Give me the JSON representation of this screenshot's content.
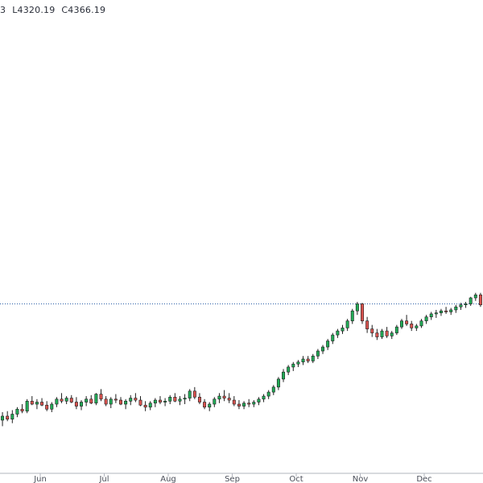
{
  "ohlc_readout": {
    "open_fragment": "3",
    "low": "L4320.19",
    "close": "C4366.19"
  },
  "colors": {
    "up": "#26a69a",
    "up_fill": "#22ab57",
    "down": "#ef5350",
    "down_fill": "#d9534f",
    "wick": "#1e1e1e",
    "price_line": "#2a5fa8",
    "axis": "#b2b5be"
  },
  "chart_data": {
    "type": "candlestick",
    "price_line": 3005,
    "ylim": [
      2200,
      4400
    ],
    "x_labels": [
      "Jun",
      "Jul",
      "Aug",
      "Sep",
      "Oct",
      "Nov",
      "Dec"
    ],
    "grid": false,
    "candles": [
      [
        2425,
        2465,
        2395,
        2445
      ],
      [
        2445,
        2470,
        2420,
        2430
      ],
      [
        2430,
        2475,
        2410,
        2455
      ],
      [
        2455,
        2490,
        2440,
        2480
      ],
      [
        2480,
        2505,
        2460,
        2470
      ],
      [
        2470,
        2530,
        2460,
        2520
      ],
      [
        2520,
        2545,
        2500,
        2505
      ],
      [
        2505,
        2530,
        2480,
        2515
      ],
      [
        2515,
        2535,
        2495,
        2500
      ],
      [
        2500,
        2520,
        2470,
        2480
      ],
      [
        2480,
        2515,
        2465,
        2505
      ],
      [
        2505,
        2540,
        2490,
        2530
      ],
      [
        2530,
        2560,
        2510,
        2520
      ],
      [
        2520,
        2545,
        2505,
        2535
      ],
      [
        2535,
        2550,
        2510,
        2515
      ],
      [
        2515,
        2540,
        2480,
        2495
      ],
      [
        2495,
        2525,
        2475,
        2515
      ],
      [
        2515,
        2545,
        2495,
        2530
      ],
      [
        2530,
        2550,
        2505,
        2510
      ],
      [
        2510,
        2560,
        2500,
        2555
      ],
      [
        2555,
        2580,
        2520,
        2530
      ],
      [
        2530,
        2545,
        2495,
        2505
      ],
      [
        2505,
        2540,
        2485,
        2530
      ],
      [
        2530,
        2555,
        2510,
        2525
      ],
      [
        2525,
        2540,
        2500,
        2505
      ],
      [
        2505,
        2530,
        2480,
        2520
      ],
      [
        2520,
        2550,
        2500,
        2535
      ],
      [
        2535,
        2560,
        2515,
        2525
      ],
      [
        2525,
        2545,
        2495,
        2500
      ],
      [
        2500,
        2520,
        2470,
        2490
      ],
      [
        2490,
        2520,
        2475,
        2510
      ],
      [
        2510,
        2535,
        2490,
        2525
      ],
      [
        2525,
        2545,
        2505,
        2515
      ],
      [
        2515,
        2535,
        2495,
        2520
      ],
      [
        2520,
        2550,
        2505,
        2540
      ],
      [
        2540,
        2560,
        2515,
        2520
      ],
      [
        2520,
        2545,
        2500,
        2530
      ],
      [
        2530,
        2555,
        2505,
        2535
      ],
      [
        2535,
        2580,
        2520,
        2570
      ],
      [
        2570,
        2590,
        2530,
        2540
      ],
      [
        2540,
        2560,
        2505,
        2515
      ],
      [
        2515,
        2530,
        2480,
        2490
      ],
      [
        2490,
        2515,
        2470,
        2505
      ],
      [
        2505,
        2540,
        2490,
        2530
      ],
      [
        2530,
        2560,
        2510,
        2545
      ],
      [
        2545,
        2575,
        2520,
        2535
      ],
      [
        2535,
        2560,
        2510,
        2525
      ],
      [
        2525,
        2545,
        2495,
        2505
      ],
      [
        2505,
        2525,
        2480,
        2495
      ],
      [
        2495,
        2520,
        2480,
        2510
      ],
      [
        2510,
        2530,
        2490,
        2505
      ],
      [
        2505,
        2525,
        2490,
        2515
      ],
      [
        2515,
        2540,
        2500,
        2530
      ],
      [
        2530,
        2555,
        2515,
        2545
      ],
      [
        2545,
        2575,
        2530,
        2565
      ],
      [
        2565,
        2600,
        2550,
        2590
      ],
      [
        2590,
        2640,
        2575,
        2630
      ],
      [
        2630,
        2680,
        2615,
        2665
      ],
      [
        2665,
        2700,
        2650,
        2690
      ],
      [
        2690,
        2715,
        2670,
        2705
      ],
      [
        2705,
        2725,
        2690,
        2715
      ],
      [
        2715,
        2745,
        2700,
        2730
      ],
      [
        2730,
        2745,
        2710,
        2720
      ],
      [
        2720,
        2755,
        2710,
        2745
      ],
      [
        2745,
        2780,
        2730,
        2770
      ],
      [
        2770,
        2800,
        2755,
        2790
      ],
      [
        2790,
        2830,
        2775,
        2820
      ],
      [
        2820,
        2860,
        2805,
        2850
      ],
      [
        2850,
        2880,
        2835,
        2870
      ],
      [
        2870,
        2900,
        2855,
        2885
      ],
      [
        2885,
        2930,
        2870,
        2920
      ],
      [
        2920,
        2980,
        2905,
        2970
      ],
      [
        2970,
        3015,
        2950,
        3005
      ],
      [
        3005,
        3010,
        2905,
        2920
      ],
      [
        2920,
        2940,
        2860,
        2880
      ],
      [
        2880,
        2900,
        2840,
        2860
      ],
      [
        2860,
        2880,
        2825,
        2840
      ],
      [
        2840,
        2880,
        2830,
        2870
      ],
      [
        2870,
        2890,
        2835,
        2845
      ],
      [
        2845,
        2870,
        2830,
        2860
      ],
      [
        2860,
        2900,
        2850,
        2890
      ],
      [
        2890,
        2930,
        2880,
        2920
      ],
      [
        2920,
        2950,
        2895,
        2905
      ],
      [
        2905,
        2920,
        2870,
        2885
      ],
      [
        2885,
        2905,
        2870,
        2895
      ],
      [
        2895,
        2930,
        2885,
        2920
      ],
      [
        2920,
        2950,
        2905,
        2940
      ],
      [
        2940,
        2965,
        2925,
        2955
      ],
      [
        2955,
        2975,
        2935,
        2960
      ],
      [
        2960,
        2980,
        2945,
        2970
      ],
      [
        2970,
        2990,
        2955,
        2965
      ],
      [
        2965,
        2985,
        2950,
        2975
      ],
      [
        2975,
        3000,
        2960,
        2990
      ],
      [
        2990,
        3010,
        2975,
        3000
      ],
      [
        3000,
        3015,
        2985,
        3005
      ],
      [
        3005,
        3040,
        2995,
        3035
      ],
      [
        3035,
        3060,
        3020,
        3050
      ],
      [
        3050,
        3060,
        2990,
        3000
      ]
    ]
  }
}
